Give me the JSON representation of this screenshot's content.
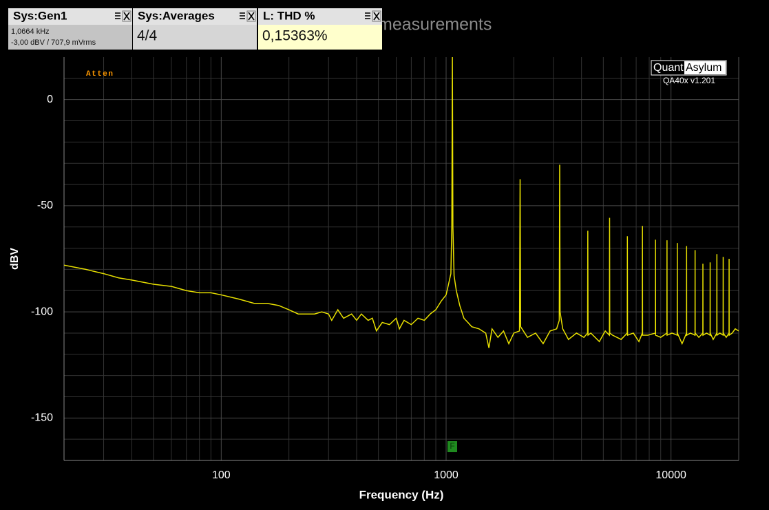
{
  "widgets": [
    {
      "title": "Sys:Gen1",
      "lines": [
        "1,0664 kHz",
        "-3,00 dBV  / 707,9 mVrms"
      ]
    },
    {
      "title": "Sys:Averages",
      "lines": [
        "4/4"
      ]
    },
    {
      "title": "L: THD %",
      "lines": [
        "0,15363%"
      ]
    }
  ],
  "chart_data": {
    "type": "line",
    "title": "measurements",
    "annotation": "Atten",
    "logo": [
      "Quant",
      "Asylum"
    ],
    "version": "QA40x v1.201",
    "marker_label": "F",
    "x_label": "Frequency (Hz)",
    "y_label": "dBV",
    "x_scale": "log",
    "grid": true,
    "xlim": [
      20,
      20000
    ],
    "ylim": [
      -170,
      20
    ],
    "xticks": [
      100,
      1000,
      10000
    ],
    "xminorticks": [
      20,
      30,
      40,
      50,
      60,
      70,
      80,
      90,
      200,
      300,
      400,
      500,
      600,
      700,
      800,
      900,
      2000,
      3000,
      4000,
      5000,
      6000,
      7000,
      8000,
      9000,
      20000
    ],
    "yticks": [
      0,
      -50,
      -100,
      -150
    ],
    "yminorticks": [
      10,
      -10,
      -20,
      -30,
      -40,
      -60,
      -70,
      -80,
      -90,
      -110,
      -120,
      -130,
      -140,
      -160
    ],
    "x": [
      20,
      25,
      30,
      35,
      40,
      50,
      60,
      70,
      80,
      90,
      100,
      120,
      140,
      160,
      180,
      200,
      220,
      240,
      260,
      280,
      300,
      310,
      330,
      350,
      380,
      400,
      420,
      450,
      470,
      490,
      520,
      560,
      600,
      620,
      650,
      700,
      750,
      800,
      850,
      900,
      950,
      1000,
      1030,
      1050,
      1060,
      1066.4,
      1072,
      1085,
      1110,
      1150,
      1200,
      1250,
      1300,
      1400,
      1500,
      1550,
      1600,
      1700,
      1800,
      1900,
      2000,
      2120,
      2133,
      2145,
      2300,
      2500,
      2700,
      2900,
      3100,
      3185,
      3199,
      3212,
      3300,
      3500,
      3800,
      4100,
      4256,
      4266,
      4276,
      4400,
      4800,
      5100,
      5322,
      5332,
      5342,
      5500,
      6000,
      6388,
      6398,
      6408,
      6800,
      7200,
      7455,
      7465,
      7475,
      7900,
      8521,
      8531,
      8541,
      9000,
      9588,
      9598,
      9608,
      10100,
      10654,
      10664,
      10674,
      11200,
      11720,
      11730,
      11740,
      12200,
      12787,
      12797,
      12807,
      13300,
      13853,
      13863,
      13873,
      14400,
      14920,
      14930,
      14940,
      15400,
      15986,
      15996,
      16006,
      16500,
      17052,
      17062,
      17072,
      17600,
      18119,
      18129,
      18139,
      18700,
      19300,
      20000
    ],
    "series": [
      {
        "color": "#e8e000",
        "values": [
          -78,
          -80,
          -82,
          -84,
          -85,
          -87,
          -88,
          -90,
          -91,
          -91,
          -92,
          -94,
          -96,
          -96,
          -97,
          -99,
          -101,
          -101,
          -101,
          -100,
          -101,
          -104,
          -99,
          -103,
          -101,
          -104,
          -101,
          -104,
          -103,
          -109,
          -105,
          -106,
          -103,
          -108,
          -104,
          -106,
          -103,
          -104,
          -101,
          -99,
          -95,
          -92,
          -86,
          -82,
          -60,
          20,
          -60,
          -83,
          -90,
          -97,
          -103,
          -105,
          -107,
          -108,
          -110,
          -117,
          -108,
          -112,
          -109,
          -115,
          -110,
          -109,
          -37.5,
          -107,
          -112,
          -110,
          -115,
          -109,
          -108,
          -104,
          -30.7,
          -100,
          -108,
          -113,
          -110,
          -112,
          -110,
          -61.8,
          -111,
          -110,
          -114,
          -109,
          -111,
          -55.7,
          -110,
          -111,
          -113,
          -110,
          -64.4,
          -111,
          -110,
          -114,
          -110,
          -59.5,
          -111,
          -111,
          -110,
          -66,
          -111,
          -112,
          -110,
          -66.3,
          -111,
          -110,
          -111,
          -67.6,
          -110,
          -115,
          -110,
          -69,
          -111,
          -110,
          -111,
          -70.9,
          -110,
          -112,
          -110,
          -77.3,
          -111,
          -110,
          -111,
          -76.7,
          -110,
          -113,
          -110,
          -72.8,
          -111,
          -110,
          -111,
          -74.1,
          -110,
          -112,
          -110,
          -75,
          -111,
          -110,
          -108,
          -109
        ]
      }
    ]
  }
}
